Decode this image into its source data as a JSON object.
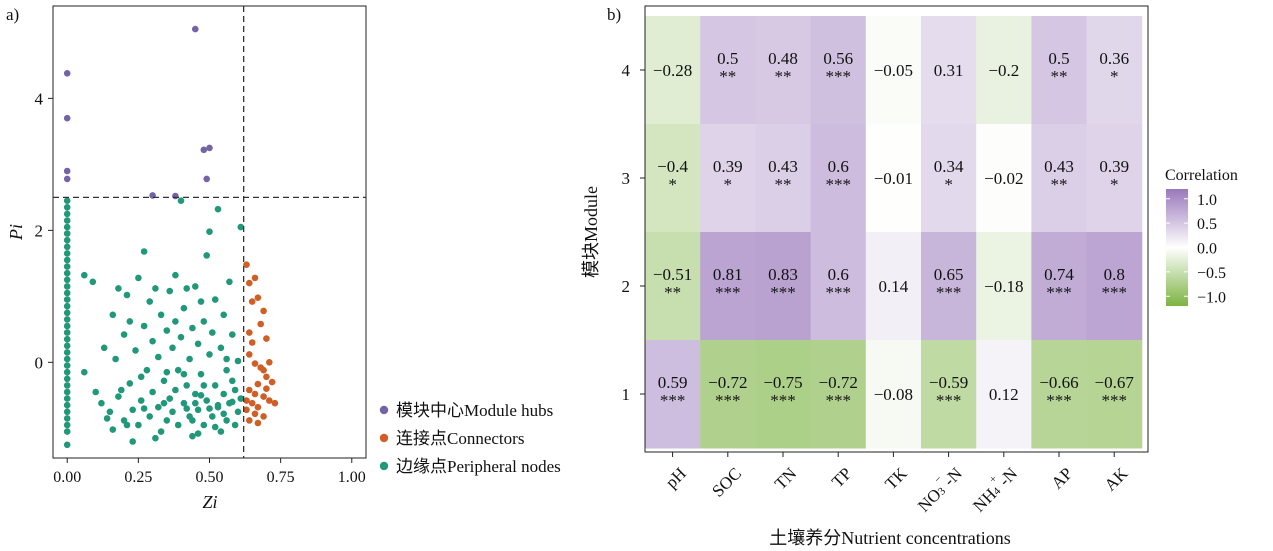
{
  "chart_data": [
    {
      "panel_label": "a)",
      "type": "scatter",
      "xlabel": "Zi",
      "ylabel": "Pi",
      "xlim": [
        -0.05,
        1.05
      ],
      "ylim": [
        -1.45,
        5.4
      ],
      "x_ticks": [
        "0.00",
        "0.25",
        "0.50",
        "0.75",
        "1.00"
      ],
      "y_ticks": [
        "0",
        "2",
        "4"
      ],
      "grid": false,
      "threshold_lines": {
        "zi": 0.62,
        "pi": 2.5
      },
      "legend_position": "right",
      "series": [
        {
          "name": "模块中心Module hubs",
          "color": "#7563a8",
          "points": [
            [
              0.0,
              4.38
            ],
            [
              0.0,
              3.7
            ],
            [
              0.0,
              2.9
            ],
            [
              0.0,
              2.78
            ],
            [
              0.45,
              5.05
            ],
            [
              0.48,
              3.22
            ],
            [
              0.5,
              3.25
            ],
            [
              0.49,
              2.78
            ],
            [
              0.3,
              2.53
            ],
            [
              0.38,
              2.52
            ]
          ]
        },
        {
          "name": "连接点Connectors",
          "color": "#cf5f26",
          "points": [
            [
              0.63,
              1.48
            ],
            [
              0.66,
              1.28
            ],
            [
              0.64,
              1.2
            ],
            [
              0.67,
              0.98
            ],
            [
              0.69,
              0.78
            ],
            [
              0.68,
              0.58
            ],
            [
              0.7,
              0.36
            ],
            [
              0.65,
              0.3
            ],
            [
              0.64,
              0.12
            ],
            [
              0.71,
              0.0
            ],
            [
              0.66,
              -0.02
            ],
            [
              0.69,
              -0.12
            ],
            [
              0.7,
              -0.22
            ],
            [
              0.72,
              -0.3
            ],
            [
              0.67,
              -0.33
            ],
            [
              0.64,
              -0.42
            ],
            [
              0.66,
              -0.48
            ],
            [
              0.69,
              -0.52
            ],
            [
              0.71,
              -0.58
            ],
            [
              0.73,
              -0.62
            ],
            [
              0.65,
              -0.62
            ],
            [
              0.67,
              -0.68
            ],
            [
              0.63,
              -0.72
            ],
            [
              0.66,
              -0.78
            ],
            [
              0.64,
              -0.88
            ],
            [
              0.67,
              -0.92
            ],
            [
              0.69,
              -0.82
            ],
            [
              0.63,
              -0.58
            ],
            [
              0.65,
              0.92
            ],
            [
              0.64,
              0.45
            ],
            [
              0.7,
              -0.4
            ],
            [
              0.68,
              -0.08
            ]
          ]
        },
        {
          "name": "边缘点Peripheral nodes",
          "color": "#21987a",
          "points": [
            [
              0.0,
              2.45
            ],
            [
              0.0,
              2.35
            ],
            [
              0.0,
              2.25
            ],
            [
              0.0,
              2.15
            ],
            [
              0.0,
              2.05
            ],
            [
              0.0,
              1.95
            ],
            [
              0.0,
              1.85
            ],
            [
              0.0,
              1.75
            ],
            [
              0.0,
              1.65
            ],
            [
              0.0,
              1.55
            ],
            [
              0.0,
              1.45
            ],
            [
              0.0,
              1.35
            ],
            [
              0.0,
              1.25
            ],
            [
              0.0,
              1.15
            ],
            [
              0.0,
              1.05
            ],
            [
              0.0,
              0.95
            ],
            [
              0.0,
              0.85
            ],
            [
              0.0,
              0.75
            ],
            [
              0.0,
              0.65
            ],
            [
              0.0,
              0.55
            ],
            [
              0.0,
              0.45
            ],
            [
              0.0,
              0.35
            ],
            [
              0.0,
              0.25
            ],
            [
              0.0,
              0.15
            ],
            [
              0.0,
              0.05
            ],
            [
              0.0,
              -0.05
            ],
            [
              0.0,
              -0.15
            ],
            [
              0.0,
              -0.25
            ],
            [
              0.0,
              -0.35
            ],
            [
              0.0,
              -0.45
            ],
            [
              0.0,
              -0.55
            ],
            [
              0.0,
              -0.65
            ],
            [
              0.0,
              -0.75
            ],
            [
              0.0,
              -0.85
            ],
            [
              0.0,
              -0.95
            ],
            [
              0.0,
              -1.05
            ],
            [
              0.0,
              -1.25
            ],
            [
              0.06,
              1.32
            ],
            [
              0.06,
              -0.15
            ],
            [
              0.09,
              1.22
            ],
            [
              0.1,
              -0.45
            ],
            [
              0.12,
              -0.62
            ],
            [
              0.13,
              0.22
            ],
            [
              0.15,
              -0.75
            ],
            [
              0.16,
              0.72
            ],
            [
              0.17,
              0.05
            ],
            [
              0.18,
              -0.52
            ],
            [
              0.18,
              1.12
            ],
            [
              0.2,
              -0.88
            ],
            [
              0.2,
              0.42
            ],
            [
              0.21,
              1.02
            ],
            [
              0.22,
              -0.32
            ],
            [
              0.22,
              0.62
            ],
            [
              0.23,
              -0.72
            ],
            [
              0.24,
              0.18
            ],
            [
              0.25,
              -0.95
            ],
            [
              0.25,
              1.28
            ],
            [
              0.26,
              -0.58
            ],
            [
              0.27,
              0.55
            ],
            [
              0.27,
              1.68
            ],
            [
              0.28,
              -0.12
            ],
            [
              0.29,
              -0.82
            ],
            [
              0.29,
              0.92
            ],
            [
              0.3,
              0.32
            ],
            [
              0.3,
              -0.45
            ],
            [
              0.31,
              1.12
            ],
            [
              0.32,
              -0.68
            ],
            [
              0.32,
              0.08
            ],
            [
              0.33,
              -1.05
            ],
            [
              0.33,
              0.72
            ],
            [
              0.34,
              -0.28
            ],
            [
              0.35,
              0.48
            ],
            [
              0.35,
              -0.88
            ],
            [
              0.36,
              1.08
            ],
            [
              0.36,
              -0.55
            ],
            [
              0.37,
              0.22
            ],
            [
              0.37,
              -0.75
            ],
            [
              0.38,
              0.62
            ],
            [
              0.38,
              1.32
            ],
            [
              0.39,
              -0.12
            ],
            [
              0.39,
              -0.95
            ],
            [
              0.4,
              0.38
            ],
            [
              0.4,
              2.45
            ],
            [
              0.41,
              -0.62
            ],
            [
              0.41,
              0.82
            ],
            [
              0.42,
              -0.35
            ],
            [
              0.42,
              1.12
            ],
            [
              0.43,
              0.05
            ],
            [
              0.43,
              -0.82
            ],
            [
              0.44,
              0.52
            ],
            [
              0.44,
              -1.12
            ],
            [
              0.45,
              -0.48
            ],
            [
              0.45,
              1.15
            ],
            [
              0.46,
              0.28
            ],
            [
              0.46,
              -0.72
            ],
            [
              0.47,
              0.92
            ],
            [
              0.47,
              -0.18
            ],
            [
              0.48,
              -0.95
            ],
            [
              0.48,
              0.62
            ],
            [
              0.49,
              1.62
            ],
            [
              0.49,
              -0.58
            ],
            [
              0.5,
              0.12
            ],
            [
              0.5,
              1.98
            ],
            [
              0.51,
              -0.82
            ],
            [
              0.51,
              0.45
            ],
            [
              0.52,
              -0.35
            ],
            [
              0.52,
              0.95
            ],
            [
              0.53,
              2.32
            ],
            [
              0.53,
              -0.68
            ],
            [
              0.54,
              0.22
            ],
            [
              0.54,
              -1.05
            ],
            [
              0.55,
              -0.48
            ],
            [
              0.55,
              0.72
            ],
            [
              0.56,
              -0.88
            ],
            [
              0.56,
              0.05
            ],
            [
              0.57,
              1.22
            ],
            [
              0.57,
              -0.62
            ],
            [
              0.58,
              -0.28
            ],
            [
              0.58,
              0.42
            ],
            [
              0.59,
              -0.95
            ],
            [
              0.59,
              -0.42
            ],
            [
              0.6,
              0.02
            ],
            [
              0.6,
              -0.75
            ],
            [
              0.61,
              -0.55
            ],
            [
              0.61,
              2.05
            ],
            [
              0.14,
              -0.85
            ],
            [
              0.16,
              -1.02
            ],
            [
              0.19,
              -0.42
            ],
            [
              0.23,
              -1.2
            ],
            [
              0.26,
              -0.22
            ],
            [
              0.31,
              -1.15
            ],
            [
              0.34,
              -0.62
            ],
            [
              0.44,
              -0.88
            ],
            [
              0.46,
              -1.08
            ],
            [
              0.52,
              -0.98
            ],
            [
              0.56,
              -0.12
            ],
            [
              0.41,
              -0.18
            ],
            [
              0.38,
              -0.42
            ],
            [
              0.27,
              -0.7
            ],
            [
              0.21,
              -0.95
            ],
            [
              0.48,
              -0.35
            ],
            [
              0.53,
              -0.65
            ],
            [
              0.45,
              -0.62
            ],
            [
              0.35,
              -0.15
            ],
            [
              0.42,
              -0.7
            ],
            [
              0.5,
              -0.7
            ],
            [
              0.55,
              -0.78
            ],
            [
              0.58,
              -0.6
            ],
            [
              0.47,
              -0.5
            ]
          ]
        }
      ]
    },
    {
      "panel_label": "b)",
      "type": "heatmap",
      "xlabel": "土壤养分Nutrient concentrations",
      "ylabel": "模块Module",
      "columns": [
        "pH",
        "SOC",
        "TN",
        "TP",
        "TK",
        "NO₃⁻-N",
        "NH₄⁺-N",
        "AP",
        "AK"
      ],
      "column_labels": [
        {
          "main": "pH"
        },
        {
          "main": "SOC"
        },
        {
          "main": "TN"
        },
        {
          "main": "TP"
        },
        {
          "main": "TK"
        },
        {
          "main": "NO",
          "sub": "3",
          "sup": "−",
          "tail": "-N"
        },
        {
          "main": "NH",
          "sub": "4",
          "sup": "+",
          "tail": "-N"
        },
        {
          "main": "AP"
        },
        {
          "main": "AK"
        }
      ],
      "rows": [
        "4",
        "3",
        "2",
        "1"
      ],
      "values": [
        [
          -0.28,
          0.5,
          0.48,
          0.56,
          -0.05,
          0.31,
          -0.2,
          0.5,
          0.36
        ],
        [
          -0.4,
          0.39,
          0.43,
          0.6,
          -0.01,
          0.34,
          -0.02,
          0.43,
          0.39
        ],
        [
          -0.51,
          0.81,
          0.83,
          0.6,
          0.14,
          0.65,
          -0.18,
          0.74,
          0.8
        ],
        [
          0.59,
          -0.72,
          -0.75,
          -0.72,
          -0.08,
          -0.59,
          0.12,
          -0.66,
          -0.67
        ]
      ],
      "labels": [
        [
          "−0.28",
          "0.5",
          "0.48",
          "0.56",
          "−0.05",
          "0.31",
          "−0.2",
          "0.5",
          "0.36"
        ],
        [
          "−0.4",
          "0.39",
          "0.43",
          "0.6",
          "−0.01",
          "0.34",
          "−0.02",
          "0.43",
          "0.39"
        ],
        [
          "−0.51",
          "0.81",
          "0.83",
          "0.6",
          "0.14",
          "0.65",
          "−0.18",
          "0.74",
          "0.8"
        ],
        [
          "0.59",
          "−0.72",
          "−0.75",
          "−0.72",
          "−0.08",
          "−0.59",
          "0.12",
          "−0.66",
          "−0.67"
        ]
      ],
      "significance": [
        [
          "",
          "**",
          "**",
          "***",
          "",
          "",
          "",
          "**",
          "*"
        ],
        [
          "*",
          "*",
          "**",
          "***",
          "",
          "*",
          "",
          "**",
          "*"
        ],
        [
          "**",
          "***",
          "***",
          "***",
          "",
          "***",
          "",
          "***",
          "***"
        ],
        [
          "***",
          "***",
          "***",
          "***",
          "",
          "***",
          "",
          "***",
          "***"
        ]
      ],
      "colorbar": {
        "title": "Correlation",
        "range": [
          -1.2,
          1.2
        ],
        "ticks": [
          "1.0",
          "0.5",
          "0.0",
          "−0.5",
          "−1.0"
        ],
        "high_color": "#9a78bb",
        "mid_color": "#ffffff",
        "low_color": "#7cb342"
      }
    }
  ]
}
